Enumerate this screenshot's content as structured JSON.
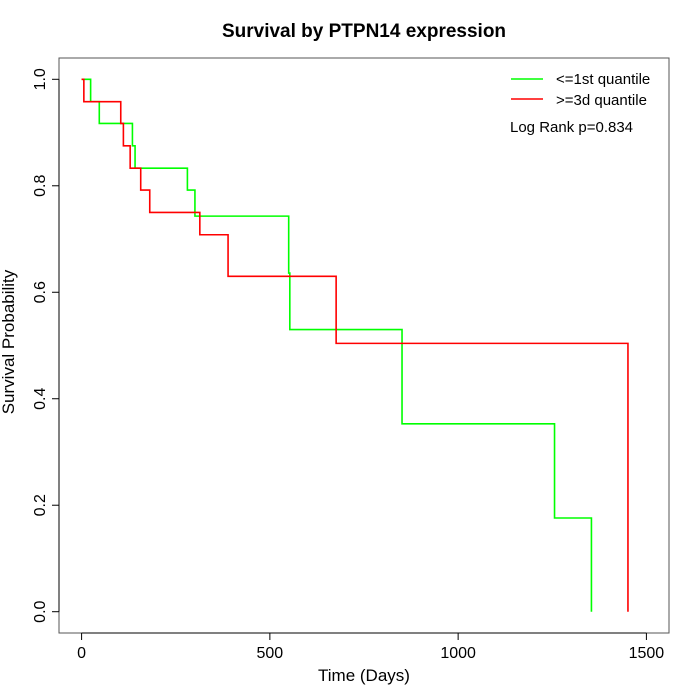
{
  "chart_data": {
    "type": "line",
    "subtype": "kaplan-meier step",
    "title": "Survival by PTPN14 expression",
    "xlabel": "Time (Days)",
    "ylabel": "Survival Probability",
    "xlim": [
      -60,
      1560
    ],
    "ylim": [
      -0.04,
      1.04
    ],
    "xticks": [
      0,
      500,
      1000,
      1500
    ],
    "xtick_labels": [
      "0",
      "500",
      "1000",
      "1500"
    ],
    "yticks": [
      0.0,
      0.2,
      0.4,
      0.6,
      0.8,
      1.0
    ],
    "ytick_labels": [
      "0.0",
      "0.2",
      "0.4",
      "0.6",
      "0.8",
      "1.0"
    ],
    "grid": false,
    "legend_position": "top-right",
    "annotation": "Log Rank p=0.834",
    "series": [
      {
        "name": "<=1st quantile",
        "color": "#00ff00",
        "steps": [
          {
            "x": 0,
            "y": 1.0
          },
          {
            "x": 24,
            "y": 0.958
          },
          {
            "x": 47,
            "y": 0.917
          },
          {
            "x": 135,
            "y": 0.875
          },
          {
            "x": 142,
            "y": 0.833
          },
          {
            "x": 281,
            "y": 0.792
          },
          {
            "x": 301,
            "y": 0.743
          },
          {
            "x": 550,
            "y": 0.636
          },
          {
            "x": 553,
            "y": 0.53
          },
          {
            "x": 851,
            "y": 0.353
          },
          {
            "x": 1256,
            "y": 0.176
          },
          {
            "x": 1354,
            "y": 0.0
          }
        ]
      },
      {
        "name": ">=3d quantile",
        "color": "#ff0000",
        "steps": [
          {
            "x": 0,
            "y": 1.0
          },
          {
            "x": 6,
            "y": 0.958
          },
          {
            "x": 104,
            "y": 0.917
          },
          {
            "x": 111,
            "y": 0.875
          },
          {
            "x": 129,
            "y": 0.833
          },
          {
            "x": 157,
            "y": 0.792
          },
          {
            "x": 181,
            "y": 0.75
          },
          {
            "x": 314,
            "y": 0.708
          },
          {
            "x": 389,
            "y": 0.63
          },
          {
            "x": 676,
            "y": 0.504
          },
          {
            "x": 1451,
            "y": 0.0
          }
        ]
      }
    ]
  }
}
